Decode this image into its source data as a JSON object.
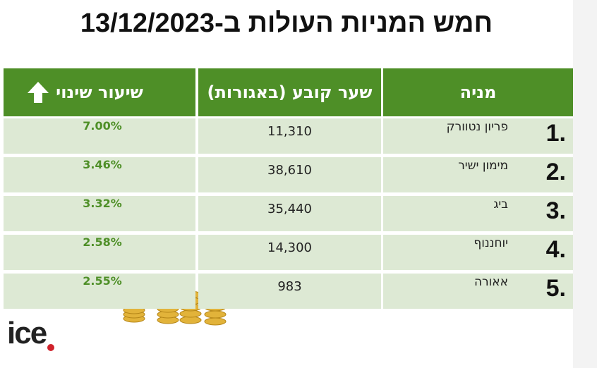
{
  "header": {
    "title": "חמש המניות העולות ב-13/12/2023"
  },
  "table": {
    "columns": [
      "מניה",
      "שער קובע (באגורות)",
      "שיעור שינוי"
    ],
    "rows": [
      [
        "1.",
        "פריון נטוורק",
        "11,310",
        "7.00%"
      ],
      [
        "2.",
        "מימון ישיר",
        "38,610",
        "3.46%"
      ],
      [
        "3.",
        "ביג",
        "35,440",
        "3.32%"
      ],
      [
        "4.",
        "יוחננוף",
        "14,300",
        "2.58%"
      ],
      [
        "5.",
        "אאורה",
        "983",
        "2.55%"
      ]
    ]
  },
  "logo": "ice"
}
